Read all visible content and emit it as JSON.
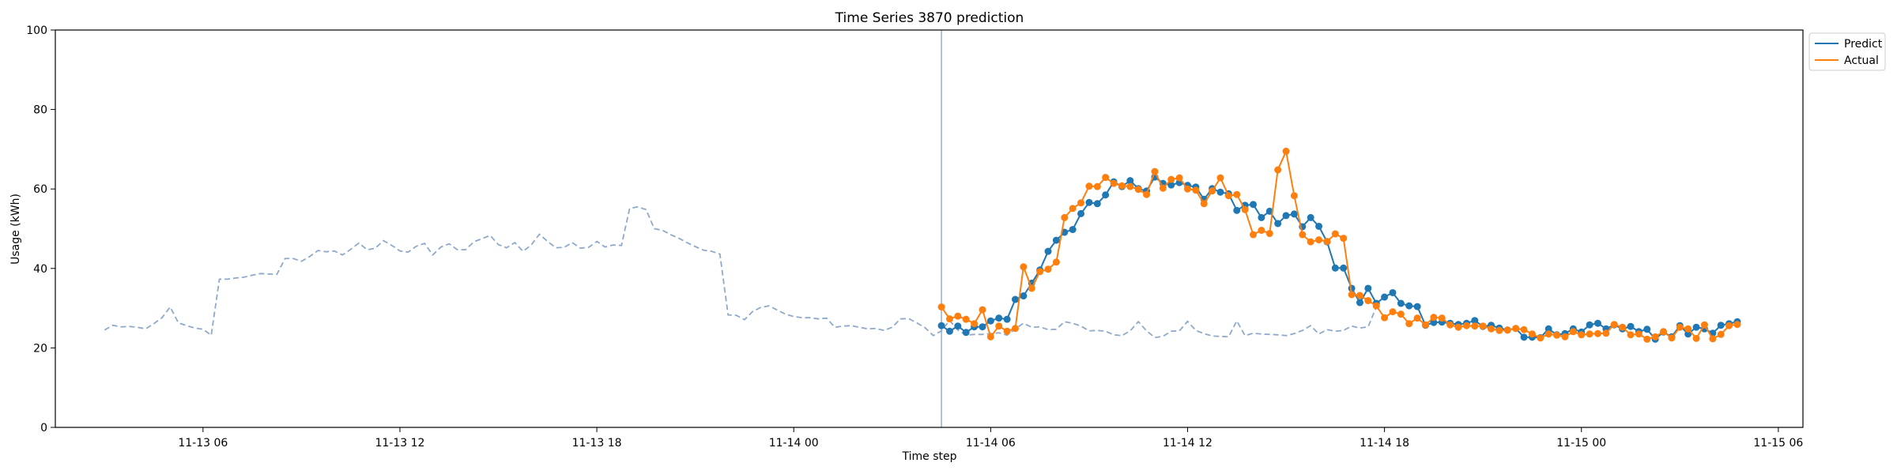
{
  "chart_data": {
    "type": "line",
    "title": "Time Series 3870 prediction",
    "xlabel": "Time step",
    "ylabel": "Usage (kWh)",
    "xlim": [
      "2023-11-13T01:30",
      "2023-11-15T06:45"
    ],
    "ylim": [
      0,
      100
    ],
    "x_ticks": [
      {
        "t": "2023-11-13T06:00",
        "label": "11-13 06"
      },
      {
        "t": "2023-11-13T12:00",
        "label": "11-13 12"
      },
      {
        "t": "2023-11-13T18:00",
        "label": "11-13 18"
      },
      {
        "t": "2023-11-14T00:00",
        "label": "11-14 00"
      },
      {
        "t": "2023-11-14T06:00",
        "label": "11-14 06"
      },
      {
        "t": "2023-11-14T12:00",
        "label": "11-14 12"
      },
      {
        "t": "2023-11-14T18:00",
        "label": "11-14 18"
      },
      {
        "t": "2023-11-15T00:00",
        "label": "11-15 00"
      },
      {
        "t": "2023-11-15T06:00",
        "label": "11-15 06"
      }
    ],
    "y_ticks": [
      0,
      20,
      40,
      60,
      80,
      100
    ],
    "grid": false,
    "legend_position": "outside top-right",
    "colors": {
      "predict": "#1f77b4",
      "actual": "#ff7f0e",
      "history": "#8fa9c8",
      "forecast_start": "#8fa9c8"
    },
    "interval_minutes": 15,
    "forecast_start": "2023-11-14T04:30",
    "history": {
      "start": "2023-11-13T03:00",
      "values": [
        24.5,
        25.7,
        25.3,
        25.4,
        25.2,
        24.8,
        26.1,
        27.6,
        30.3,
        26.3,
        25.6,
        25,
        24.7,
        23.2,
        37.3,
        37.3,
        37.6,
        37.8,
        38.3,
        38.7,
        38.6,
        38.5,
        42.5,
        42.5,
        41.8,
        43,
        44.5,
        44.2,
        44.4,
        43.4,
        44.8,
        46.4,
        44.7,
        45.1,
        47,
        45.8,
        44.4,
        44.1,
        45.6,
        46.3,
        43.4,
        45.4,
        46.2,
        44.7,
        44.7,
        46.7,
        47.5,
        48.3,
        46,
        45.2,
        46.5,
        44.3,
        45.9,
        48.6,
        46.8,
        45.2,
        45.3,
        46.5,
        45.1,
        45.3,
        46.8,
        45.4,
        45.9,
        45.8,
        55.1,
        55.5,
        54.8,
        50,
        49.6,
        48.5,
        47.6,
        46.5,
        45.5,
        44.6,
        44.3,
        43.6,
        28.3,
        28.2,
        27.1,
        29.2,
        30.2,
        30.6,
        29.5,
        28.5,
        27.9,
        27.6,
        27.6,
        27.3,
        27.5,
        25.2,
        25.5,
        25.6,
        25.2,
        24.8,
        24.9,
        24.4,
        25.2,
        27.3,
        27.4,
        26.3,
        25.1,
        23.1,
        24.3,
        26.9,
        24.5,
        23.2,
        23.4,
        23.4,
        23.6,
        23.8,
        23.2,
        24.8,
        26.2,
        25.2,
        25.3,
        24.6,
        24.7,
        26.6,
        26.2,
        25.5,
        24.3,
        24.4,
        24.2,
        23.3,
        23.1,
        24.3,
        26.6,
        24.3,
        22.6,
        22.9,
        24.2,
        24.3,
        26.7,
        24.4,
        23.6,
        23,
        22.9,
        22.8,
        26.8,
        23.1,
        23.7,
        23.5,
        23.4,
        23.3,
        23.1,
        23.6,
        24.4,
        25.6,
        23.5,
        24.6,
        24.2,
        24.4,
        25.5,
        25,
        25.3,
        30.3
      ]
    },
    "forecast_times_start": "2023-11-14T04:30",
    "series": [
      {
        "name": "Predict",
        "values": [
          25.6,
          24.2,
          25.5,
          23.9,
          25.3,
          25.3,
          26.8,
          27.5,
          27.2,
          32.2,
          33.1,
          36.3,
          39.6,
          44.3,
          47.1,
          49.1,
          49.8,
          53.8,
          56.6,
          56.3,
          58.5,
          61.8,
          60.6,
          62.1,
          60.1,
          59.5,
          63,
          61.4,
          61,
          61.6,
          60.9,
          60.5,
          57.4,
          60.1,
          59.2,
          58.8,
          54.6,
          55.9,
          56.1,
          52.8,
          54.4,
          51.3,
          53.3,
          53.7,
          50.5,
          52.8,
          50.6,
          46.7,
          40.1,
          40.1,
          35,
          31.4,
          35,
          31.2,
          32.8,
          33.9,
          31.2,
          30.6,
          30.4,
          25.7,
          26.4,
          26.5,
          26.2,
          25.9,
          26.2,
          26.9,
          25.4,
          25.7,
          25,
          24.5,
          24.9,
          22.7,
          22.7,
          22.6,
          24.8,
          23.3,
          23.6,
          24.8,
          24,
          25.8,
          26.2,
          24.8,
          25.8,
          24.8,
          25.4,
          24.1,
          24.7,
          22.2,
          24,
          22.8,
          25.6,
          23.5,
          25.2,
          24.8,
          23.7,
          25.7,
          26.1,
          26.6
        ]
      },
      {
        "name": "Actual",
        "values": [
          30.3,
          27.3,
          28,
          27.2,
          26.1,
          29.6,
          22.8,
          25.5,
          24.2,
          24.9,
          40.4,
          35,
          39.2,
          39.8,
          41.6,
          52.8,
          55.1,
          56.5,
          60.7,
          60.6,
          62.9,
          61.4,
          60.8,
          60.6,
          59.9,
          58.6,
          64.4,
          60.2,
          62.4,
          62.8,
          60,
          59.7,
          56.3,
          59.5,
          62.8,
          58.3,
          58.6,
          54.8,
          48.5,
          49.6,
          48.8,
          64.8,
          69.5,
          58.3,
          48.5,
          46.7,
          47.2,
          46.8,
          48.7,
          47.6,
          33.4,
          33.2,
          31.9,
          30.6,
          27.6,
          29.1,
          28.5,
          26.1,
          27.5,
          25.8,
          27.7,
          27.5,
          25.8,
          25.2,
          25.6,
          25.5,
          25.5,
          24.8,
          24.4,
          24.5,
          24.9,
          24.6,
          23.5,
          22.5,
          23.5,
          23.2,
          22.8,
          24.1,
          23.3,
          23.5,
          23.6,
          23.7,
          25.9,
          25.2,
          23.3,
          23.5,
          22.2,
          22.8,
          24.1,
          22.5,
          25.2,
          24.8,
          22.4,
          25.8,
          22.3,
          23.4,
          25.6,
          25.9
        ]
      }
    ]
  }
}
